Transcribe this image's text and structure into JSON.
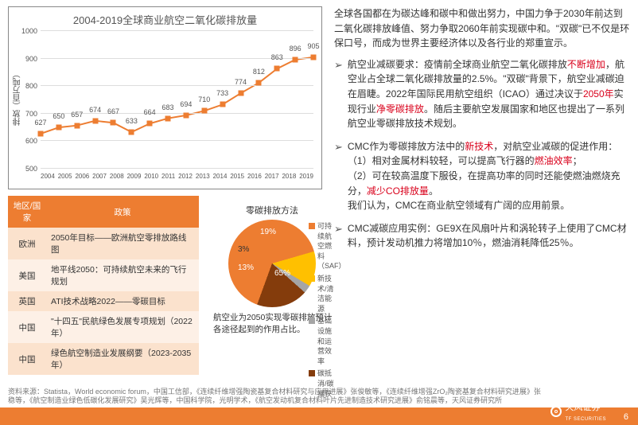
{
  "chart": {
    "title": "2004-2019全球商业航空二氧化碳排放量",
    "y_label": "排放（百万吨）",
    "ylim": [
      500,
      1000
    ],
    "ytick_step": 100,
    "years": [
      "2004",
      "2005",
      "2006",
      "2007",
      "2008",
      "2009",
      "2010",
      "2011",
      "2012",
      "2013",
      "2014",
      "2015",
      "2016",
      "2017",
      "2018",
      "2019"
    ],
    "values": [
      627,
      650,
      657,
      674,
      667,
      633,
      664,
      683,
      694,
      710,
      733,
      774,
      812,
      863,
      896,
      905
    ],
    "line_color": "#ed7d31",
    "marker_color": "#ed7d31",
    "grid_color": "#dddddd",
    "label_fontsize": 9
  },
  "table": {
    "headers": [
      "地区/国家",
      "政策"
    ],
    "rows": [
      [
        "欧洲",
        "2050年目标——欧洲航空零排放路线图"
      ],
      [
        "美国",
        "地平线2050：可持续航空未来的飞行规划"
      ],
      [
        "英国",
        "ATI技术战略2022——零碳目标"
      ],
      [
        "中国",
        "\"十四五\"民航绿色发展专项规划（2022年）"
      ],
      [
        "中国",
        "绿色航空制造业发展纲要（2023-2035年）"
      ]
    ],
    "header_bg": "#ed7d31",
    "row_bg_odd": "#fbe2cd",
    "row_bg_even": "#fdf0e6"
  },
  "pie": {
    "title": "零碳排放方法",
    "slices": [
      {
        "label": "可持续航空燃料（SAF）",
        "value": 65,
        "color": "#ed7d31"
      },
      {
        "label": "新技术/清洁能源",
        "value": 13,
        "color": "#ffc000"
      },
      {
        "label": "基础设施和运营效率",
        "value": 3,
        "color": "#a5a5a5"
      },
      {
        "label": "碳抵消/碳捕获",
        "value": 19,
        "color": "#843c0c"
      }
    ],
    "note": "航空业为2050实现零碳排放预计各途径起到的作用占比。"
  },
  "right": {
    "intro": "全球各国都在为碳达峰和碳中和做出努力，中国力争于2030年前达到二氧化碳排放峰值、努力争取2060年前实现碳中和。\"双碳\"已不仅是环保口号，而成为世界主要经济体以及各行业的郑重宣示。",
    "b1_pre": "航空业减碳要求：疫情前全球商业航空二氧化碳排放",
    "b1_hl1": "不断增加",
    "b1_mid1": "，航空业占全球二氧化碳排放量的2.5%。\"双碳\"背景下，航空业减碳迫在眉睫。2022年国际民用航空组织（ICAO）通过决议于",
    "b1_hl2": "2050年",
    "b1_mid2": "实现行业",
    "b1_hl3": "净零碳排放",
    "b1_post": "。随后主要航空发展国家和地区也提出了一系列航空业零碳排放技术规划。",
    "b2_pre": "CMC作为零碳排放方法中的",
    "b2_hl1": "新技术",
    "b2_mid1": "，对航空业减碳的促进作用：",
    "b2_line1_pre": "（1）相对金属材料较轻，可以提高飞行器的",
    "b2_line1_hl": "燃油效率",
    "b2_line1_post": "；",
    "b2_line2_pre": "（2）可在较高温度下服役，在提高功率的同时还能使燃油燃烧充分，",
    "b2_line2_hl": "减少CO排放量",
    "b2_line2_post": "。",
    "b2_concl": "我们认为，CMC在商业航空领域有广阔的应用前景。",
    "b3": "CMC减碳应用实例：GE9X在风扇叶片和涡轮转子上使用了CMC材料，预计发动机推力将增加10％，燃油消耗降低25％。"
  },
  "footer": {
    "source": "资料来源：Statista，World economic forum，中国工信部，《连续纤维增强陶瓷基复合材料研究与应用进展》张俊敏等，《连续纤维增强ZrO₂陶瓷基复合材料研究进展》张稳等，《航空制造业绿色低碳化发展研究》吴光辉等，中国科学院，光明学术，《航空发动机复合材料叶片先进制造技术研究进展》俞铭晨等，天风证券研究所",
    "logo": "天风证券",
    "logo_sub": "TF SECURITIES",
    "page": "6",
    "bar_color": "#ed7d31"
  }
}
